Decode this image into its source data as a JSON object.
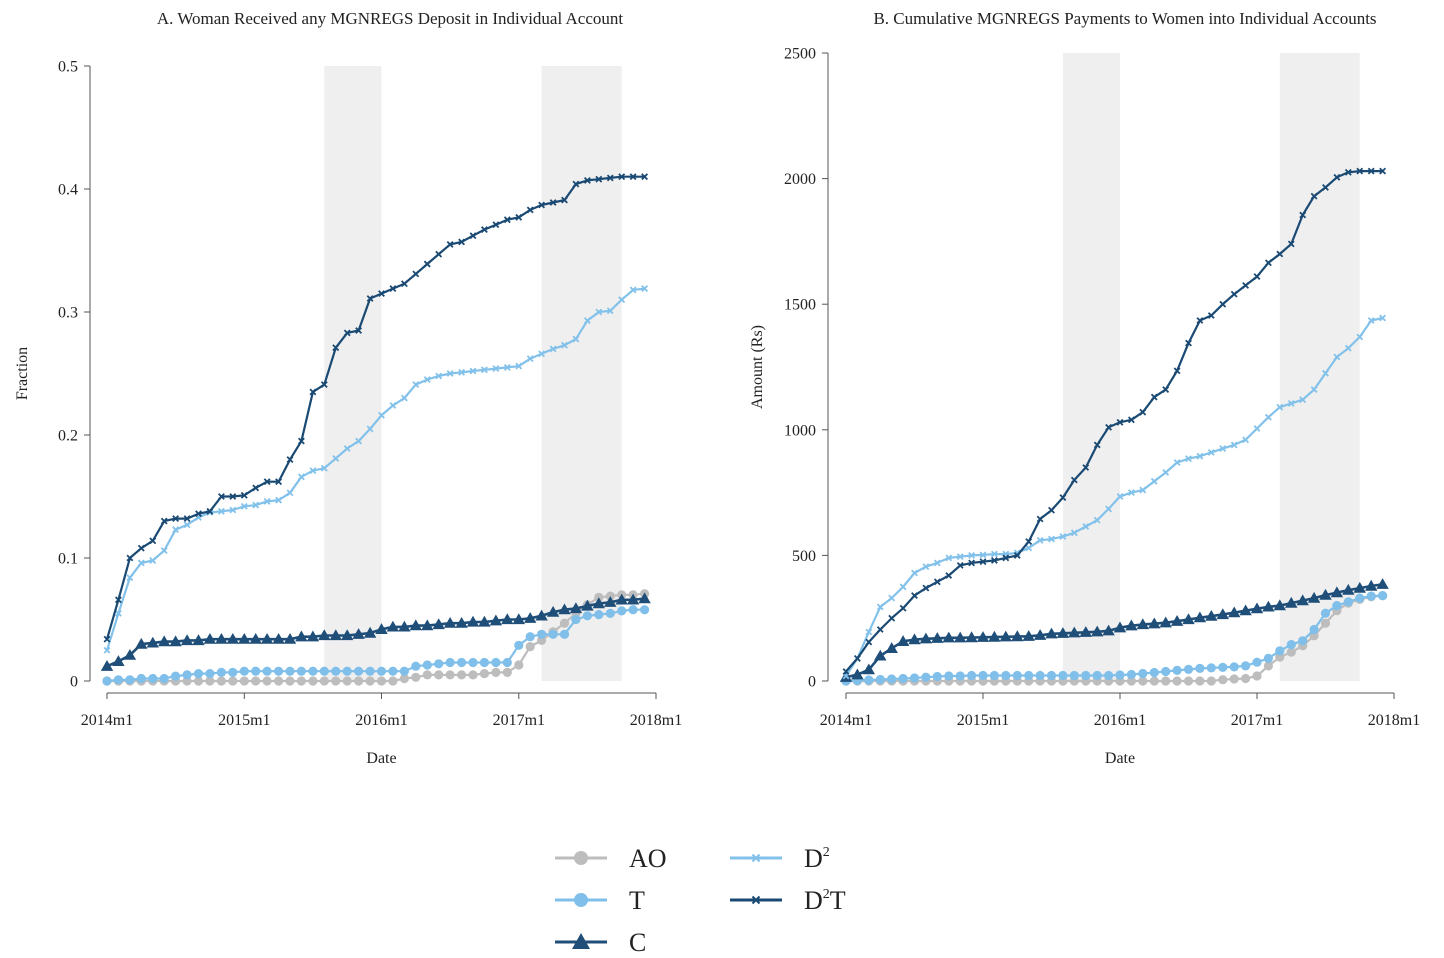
{
  "legend": [
    {
      "key": "AO",
      "label": "AO",
      "sup": ""
    },
    {
      "key": "T",
      "label": "T",
      "sup": ""
    },
    {
      "key": "C",
      "label": "C",
      "sup": ""
    },
    {
      "key": "D2",
      "label": "D",
      "sup": "2"
    },
    {
      "key": "D2T",
      "label": "D",
      "sup": "2",
      "suffix": "T"
    }
  ],
  "series_styles": {
    "AO": {
      "color": "#bdbdbd",
      "marker": "circle"
    },
    "T": {
      "color": "#7fbfea",
      "marker": "circle"
    },
    "C": {
      "color": "#1f4e79",
      "marker": "triangle"
    },
    "D2": {
      "color": "#82c1ea",
      "marker": "x"
    },
    "D2T": {
      "color": "#1a4a73",
      "marker": "x"
    }
  },
  "shading": {
    "color": "#efefef",
    "bands": [
      [
        "2015m8",
        "2016m1"
      ],
      [
        "2017m3",
        "2017m10"
      ]
    ]
  },
  "chart_data": [
    {
      "type": "line",
      "title": "A. Woman Received any MGNREGS Deposit in Individual Account",
      "xlabel": "Date",
      "ylabel": "Fraction",
      "xlim": [
        "2014m1",
        "2018m1"
      ],
      "xticks": [
        "2014m1",
        "2015m1",
        "2016m1",
        "2017m1",
        "2018m1"
      ],
      "ylim": [
        0,
        0.5
      ],
      "yticks": [
        "0",
        "0.1",
        "0.2",
        "0.3",
        "0.4",
        "0.5"
      ],
      "x_start": "2014m1",
      "series": [
        {
          "name": "AO",
          "values": [
            0,
            0,
            0,
            0,
            0,
            0,
            0,
            0,
            0,
            0,
            0,
            0,
            0,
            0,
            0,
            0,
            0,
            0,
            0,
            0,
            0,
            0,
            0,
            0,
            0,
            0,
            0.002,
            0.003,
            0.005,
            0.005,
            0.005,
            0.005,
            0.005,
            0.006,
            0.007,
            0.007,
            0.013,
            0.028,
            0.033,
            0.04,
            0.047,
            0.055,
            0.062,
            0.068,
            0.069,
            0.07,
            0.07,
            0.071
          ]
        },
        {
          "name": "T",
          "values": [
            0,
            0.001,
            0.001,
            0.002,
            0.002,
            0.002,
            0.004,
            0.005,
            0.006,
            0.006,
            0.007,
            0.007,
            0.008,
            0.008,
            0.008,
            0.008,
            0.008,
            0.008,
            0.008,
            0.008,
            0.008,
            0.008,
            0.008,
            0.008,
            0.008,
            0.008,
            0.008,
            0.012,
            0.013,
            0.014,
            0.015,
            0.015,
            0.015,
            0.015,
            0.015,
            0.015,
            0.029,
            0.036,
            0.038,
            0.038,
            0.038,
            0.05,
            0.053,
            0.054,
            0.055,
            0.057,
            0.058,
            0.058
          ]
        },
        {
          "name": "C",
          "values": [
            0.012,
            0.016,
            0.021,
            0.03,
            0.031,
            0.032,
            0.032,
            0.033,
            0.033,
            0.034,
            0.034,
            0.034,
            0.034,
            0.034,
            0.034,
            0.034,
            0.034,
            0.036,
            0.036,
            0.037,
            0.037,
            0.037,
            0.038,
            0.039,
            0.042,
            0.044,
            0.044,
            0.045,
            0.045,
            0.046,
            0.047,
            0.047,
            0.048,
            0.048,
            0.049,
            0.05,
            0.05,
            0.051,
            0.053,
            0.056,
            0.058,
            0.059,
            0.061,
            0.063,
            0.064,
            0.066,
            0.066,
            0.067
          ]
        },
        {
          "name": "D²",
          "values": [
            0.025,
            0.055,
            0.084,
            0.096,
            0.098,
            0.106,
            0.123,
            0.127,
            0.133,
            0.137,
            0.138,
            0.139,
            0.142,
            0.143,
            0.146,
            0.147,
            0.153,
            0.166,
            0.171,
            0.173,
            0.181,
            0.189,
            0.195,
            0.205,
            0.216,
            0.224,
            0.23,
            0.241,
            0.245,
            0.248,
            0.25,
            0.251,
            0.252,
            0.253,
            0.254,
            0.255,
            0.256,
            0.262,
            0.266,
            0.27,
            0.273,
            0.278,
            0.293,
            0.3,
            0.301,
            0.31,
            0.318,
            0.319
          ]
        },
        {
          "name": "D²T",
          "values": [
            0.034,
            0.066,
            0.1,
            0.108,
            0.114,
            0.13,
            0.132,
            0.132,
            0.136,
            0.138,
            0.15,
            0.15,
            0.151,
            0.157,
            0.162,
            0.162,
            0.18,
            0.195,
            0.235,
            0.241,
            0.271,
            0.283,
            0.285,
            0.311,
            0.315,
            0.319,
            0.323,
            0.331,
            0.339,
            0.347,
            0.355,
            0.357,
            0.362,
            0.367,
            0.371,
            0.375,
            0.377,
            0.383,
            0.387,
            0.389,
            0.391,
            0.404,
            0.407,
            0.408,
            0.409,
            0.41,
            0.41,
            0.41
          ]
        }
      ]
    },
    {
      "type": "line",
      "title": "B. Cumulative MGNREGS Payments to Women into Individual Accounts",
      "xlabel": "Date",
      "ylabel": "Amount (Rs)",
      "xlim": [
        "2014m1",
        "2018m1"
      ],
      "xticks": [
        "2014m1",
        "2015m1",
        "2016m1",
        "2017m1",
        "2018m1"
      ],
      "ylim": [
        0,
        2500
      ],
      "yticks": [
        "0",
        "500",
        "1000",
        "1500",
        "2000",
        "2500"
      ],
      "x_start": "2014m1",
      "series": [
        {
          "name": "AO",
          "values": [
            0,
            0,
            0,
            0,
            0,
            0,
            0,
            0,
            0,
            0,
            0,
            0,
            0,
            0,
            0,
            0,
            0,
            0,
            0,
            0,
            0,
            0,
            0,
            0,
            0,
            0,
            0,
            0,
            0,
            0,
            0,
            0,
            0,
            5,
            8,
            10,
            20,
            60,
            95,
            115,
            140,
            180,
            230,
            280,
            310,
            325,
            335,
            340
          ]
        },
        {
          "name": "T",
          "values": [
            0,
            2,
            4,
            6,
            8,
            10,
            12,
            15,
            18,
            20,
            20,
            22,
            22,
            22,
            22,
            22,
            22,
            22,
            22,
            22,
            22,
            22,
            22,
            22,
            24,
            26,
            30,
            34,
            38,
            42,
            46,
            50,
            52,
            54,
            56,
            60,
            75,
            90,
            120,
            145,
            160,
            205,
            270,
            300,
            315,
            330,
            338,
            340
          ]
        },
        {
          "name": "C",
          "values": [
            15,
            25,
            45,
            100,
            130,
            158,
            165,
            168,
            170,
            172,
            172,
            173,
            174,
            175,
            176,
            177,
            178,
            182,
            188,
            190,
            192,
            194,
            196,
            200,
            212,
            220,
            225,
            228,
            232,
            238,
            245,
            252,
            258,
            265,
            272,
            280,
            288,
            295,
            300,
            310,
            320,
            330,
            342,
            352,
            362,
            370,
            378,
            385
          ]
        },
        {
          "name": "D²",
          "values": [
            20,
            90,
            195,
            295,
            330,
            375,
            430,
            455,
            470,
            490,
            495,
            500,
            502,
            505,
            505,
            510,
            530,
            560,
            565,
            575,
            590,
            615,
            640,
            685,
            735,
            750,
            760,
            795,
            830,
            870,
            885,
            895,
            910,
            925,
            940,
            960,
            1005,
            1050,
            1090,
            1105,
            1120,
            1160,
            1225,
            1290,
            1325,
            1370,
            1435,
            1445
          ]
        },
        {
          "name": "D²T",
          "values": [
            38,
            90,
            155,
            205,
            250,
            290,
            340,
            370,
            395,
            420,
            460,
            470,
            475,
            480,
            490,
            500,
            555,
            645,
            680,
            730,
            800,
            850,
            940,
            1010,
            1030,
            1040,
            1070,
            1130,
            1160,
            1235,
            1345,
            1435,
            1455,
            1500,
            1540,
            1575,
            1610,
            1665,
            1700,
            1740,
            1855,
            1930,
            1965,
            2005,
            2025,
            2030,
            2030,
            2030
          ]
        }
      ]
    }
  ]
}
